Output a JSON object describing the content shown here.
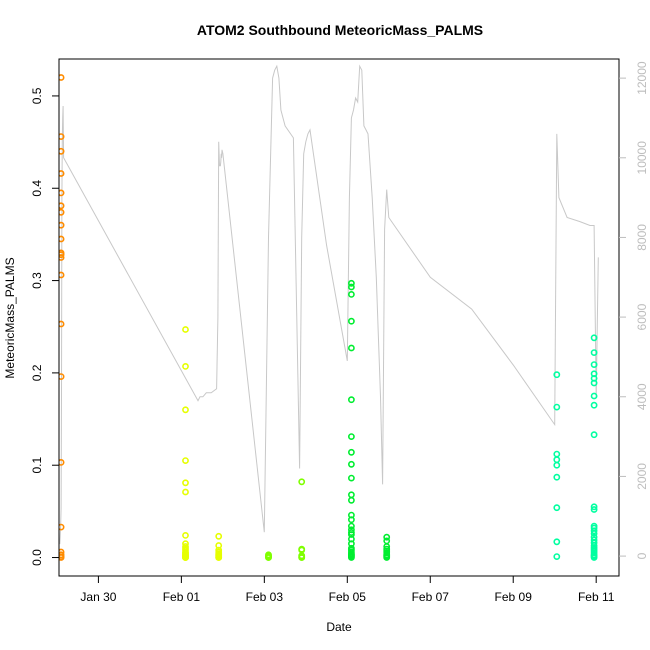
{
  "chart_data": {
    "type": "scatter",
    "title": "ATOM2 Southbound MeteoricMass_PALMS",
    "xlabel": "Date",
    "ylabel": "MeteoricMass_PALMS",
    "x_ticks": [
      "Jan 30",
      "Feb 01",
      "Feb 03",
      "Feb 05",
      "Feb 07",
      "Feb 09",
      "Feb 11"
    ],
    "y_ticks": [
      "0.0",
      "0.1",
      "0.2",
      "0.3",
      "0.4",
      "0.5"
    ],
    "y2_ticks": [
      "0",
      "2000",
      "4000",
      "6000",
      "8000",
      "10000",
      "12000"
    ],
    "xlim": [
      "2017-01-29.05",
      "2017-02-11.55"
    ],
    "ylim": [
      -0.02,
      0.54
    ],
    "y2lim": [
      -500,
      12480
    ],
    "grid": false,
    "legend": "none",
    "secondary_line_color": "#c8c8c8",
    "point_colors": {
      "jan29": "#ff8c00",
      "feb01": "#e6ff00",
      "feb03": "#7fff00",
      "feb05": "#00ee30",
      "feb10": "#00ffa0"
    },
    "series": [
      {
        "group": "jan29",
        "x": [
          "2017-01-29.1",
          "2017-01-29.1",
          "2017-01-29.1",
          "2017-01-29.1",
          "2017-01-29.1",
          "2017-01-29.1",
          "2017-01-29.1",
          "2017-01-29.1",
          "2017-01-29.1",
          "2017-01-29.1",
          "2017-01-29.1",
          "2017-01-29.1",
          "2017-01-29.1",
          "2017-01-29.1",
          "2017-01-29.1",
          "2017-01-29.1",
          "2017-01-29.1",
          "2017-01-29.1",
          "2017-01-29.1",
          "2017-01-29.1",
          "2017-01-29.1"
        ],
        "y": [
          0.52,
          0.456,
          0.44,
          0.416,
          0.395,
          0.381,
          0.374,
          0.36,
          0.345,
          0.33,
          0.328,
          0.325,
          0.306,
          0.253,
          0.196,
          0.103,
          0.033,
          0.006,
          0.003,
          0.001,
          0.0
        ]
      },
      {
        "group": "feb01",
        "x": [
          "2017-02-01.1",
          "2017-02-01.1",
          "2017-02-01.1",
          "2017-02-01.1",
          "2017-02-01.1",
          "2017-02-01.1",
          "2017-02-01.1",
          "2017-02-01.1",
          "2017-02-01.1",
          "2017-02-01.1",
          "2017-02-01.1",
          "2017-02-01.1",
          "2017-02-01.1",
          "2017-02-01.1",
          "2017-02-01.1",
          "2017-02-01.1",
          "2017-02-01.1",
          "2017-02-01.1",
          "2017-02-01.1",
          "2017-02-01.1",
          "2017-02-01.1",
          "2017-02-01.1"
        ],
        "y": [
          0.247,
          0.207,
          0.16,
          0.105,
          0.081,
          0.071,
          0.024,
          0.015,
          0.012,
          0.01,
          0.008,
          0.006,
          0.005,
          0.004,
          0.003,
          0.002,
          0.002,
          0.001,
          0.001,
          0.0,
          0.0,
          0.0
        ]
      },
      {
        "group": "feb01",
        "x": [
          "2017-02-01.9",
          "2017-02-01.9",
          "2017-02-01.9",
          "2017-02-01.9",
          "2017-02-01.9",
          "2017-02-01.9",
          "2017-02-01.9",
          "2017-02-01.9",
          "2017-02-01.9",
          "2017-02-01.9"
        ],
        "y": [
          0.023,
          0.013,
          0.008,
          0.006,
          0.004,
          0.003,
          0.002,
          0.001,
          0.0,
          0.0
        ]
      },
      {
        "group": "feb03",
        "x": [
          "2017-02-03.1",
          "2017-02-03.1",
          "2017-02-03.1",
          "2017-02-03.1",
          "2017-02-03.1",
          "2017-02-03.1"
        ],
        "y": [
          0.003,
          0.002,
          0.001,
          0.001,
          0.0,
          0.0
        ]
      },
      {
        "group": "feb03",
        "x": [
          "2017-02-03.9",
          "2017-02-03.9",
          "2017-02-03.9",
          "2017-02-03.9",
          "2017-02-03.9",
          "2017-02-03.9",
          "2017-02-03.9"
        ],
        "y": [
          0.082,
          0.009,
          0.008,
          0.002,
          0.001,
          0.0,
          0.0
        ]
      },
      {
        "group": "feb05",
        "x": [
          "2017-02-05.1",
          "2017-02-05.1",
          "2017-02-05.1",
          "2017-02-05.1",
          "2017-02-05.1",
          "2017-02-05.1",
          "2017-02-05.1",
          "2017-02-05.1",
          "2017-02-05.1",
          "2017-02-05.1",
          "2017-02-05.1",
          "2017-02-05.1",
          "2017-02-05.1",
          "2017-02-05.1",
          "2017-02-05.1",
          "2017-02-05.1",
          "2017-02-05.1",
          "2017-02-05.1",
          "2017-02-05.1",
          "2017-02-05.1",
          "2017-02-05.1",
          "2017-02-05.1",
          "2017-02-05.1",
          "2017-02-05.1",
          "2017-02-05.1",
          "2017-02-05.1",
          "2017-02-05.1",
          "2017-02-05.1"
        ],
        "y": [
          0.297,
          0.293,
          0.285,
          0.256,
          0.227,
          0.171,
          0.131,
          0.114,
          0.101,
          0.086,
          0.068,
          0.062,
          0.046,
          0.041,
          0.034,
          0.03,
          0.027,
          0.025,
          0.02,
          0.015,
          0.01,
          0.008,
          0.006,
          0.004,
          0.003,
          0.002,
          0.001,
          0.0
        ]
      },
      {
        "group": "feb05",
        "x": [
          "2017-02-05.95",
          "2017-02-05.95",
          "2017-02-05.95",
          "2017-02-05.95",
          "2017-02-05.95",
          "2017-02-05.95",
          "2017-02-05.95",
          "2017-02-05.95",
          "2017-02-05.95",
          "2017-02-05.95"
        ],
        "y": [
          0.022,
          0.018,
          0.012,
          0.009,
          0.007,
          0.005,
          0.003,
          0.002,
          0.001,
          0.0
        ]
      },
      {
        "group": "feb10",
        "x": [
          "2017-02-10.05",
          "2017-02-10.05",
          "2017-02-10.05",
          "2017-02-10.05",
          "2017-02-10.05",
          "2017-02-10.05",
          "2017-02-10.05",
          "2017-02-10.05",
          "2017-02-10.05"
        ],
        "y": [
          0.198,
          0.163,
          0.112,
          0.106,
          0.1,
          0.087,
          0.054,
          0.017,
          0.001
        ]
      },
      {
        "group": "feb10",
        "x": [
          "2017-02-10.95",
          "2017-02-10.95",
          "2017-02-10.95",
          "2017-02-10.95",
          "2017-02-10.95",
          "2017-02-10.95",
          "2017-02-10.95",
          "2017-02-10.95",
          "2017-02-10.95",
          "2017-02-10.95",
          "2017-02-10.95",
          "2017-02-10.95",
          "2017-02-10.95",
          "2017-02-10.95",
          "2017-02-10.95",
          "2017-02-10.95",
          "2017-02-10.95",
          "2017-02-10.95",
          "2017-02-10.95",
          "2017-02-10.95",
          "2017-02-10.95",
          "2017-02-10.95",
          "2017-02-10.95",
          "2017-02-10.95",
          "2017-02-10.95",
          "2017-02-10.95",
          "2017-02-10.95"
        ],
        "y": [
          0.238,
          0.222,
          0.209,
          0.199,
          0.194,
          0.189,
          0.175,
          0.165,
          0.133,
          0.055,
          0.052,
          0.034,
          0.032,
          0.029,
          0.026,
          0.022,
          0.019,
          0.016,
          0.013,
          0.011,
          0.009,
          0.007,
          0.005,
          0.003,
          0.002,
          0.001,
          0.0
        ]
      }
    ],
    "secondary_line": {
      "x": [
        "2017-01-29.07",
        "2017-01-29.08",
        "2017-01-29.09",
        "2017-01-29.1",
        "2017-01-29.11",
        "2017-01-29.12",
        "2017-01-29.13",
        "2017-01-29.14",
        "2017-01-29.15",
        "2017-01-29.16",
        "2017-02-01.4",
        "2017-02-01.45",
        "2017-02-01.52",
        "2017-02-01.6",
        "2017-02-01.72",
        "2017-02-01.85",
        "2017-02-01.88",
        "2017-02-01.9",
        "2017-02-01.92",
        "2017-02-01.93",
        "2017-02-01.94",
        "2017-02-01.95",
        "2017-02-01.96",
        "2017-02-01.97",
        "2017-02-01.98",
        "2017-02-02.0",
        "2017-02-03.0",
        "2017-02-03.1",
        "2017-02-03.2",
        "2017-02-03.25",
        "2017-02-03.3",
        "2017-02-03.35",
        "2017-02-03.4",
        "2017-02-03.5",
        "2017-02-03.7",
        "2017-02-03.85",
        "2017-02-03.9",
        "2017-02-03.95",
        "2017-02-04.0",
        "2017-02-04.05",
        "2017-02-04.1",
        "2017-02-04.5",
        "2017-02-05.0",
        "2017-02-05.05",
        "2017-02-05.1",
        "2017-02-05.15",
        "2017-02-05.2",
        "2017-02-05.25",
        "2017-02-05.3",
        "2017-02-05.35",
        "2017-02-05.4",
        "2017-02-05.45",
        "2017-02-05.5",
        "2017-02-05.6",
        "2017-02-05.7",
        "2017-02-05.8",
        "2017-02-05.85",
        "2017-02-05.9",
        "2017-02-05.95",
        "2017-02-06.0",
        "2017-02-07.0",
        "2017-02-08.0",
        "2017-02-09.0",
        "2017-02-10.0",
        "2017-02-10.05",
        "2017-02-10.1",
        "2017-02-10.3",
        "2017-02-10.6",
        "2017-02-10.85",
        "2017-02-10.9",
        "2017-02-10.95",
        "2017-02-11.0",
        "2017-02-11.05"
      ],
      "y": [
        300,
        500,
        800,
        1200,
        4000,
        9000,
        10500,
        11000,
        11300,
        10000,
        3900,
        4000,
        4000,
        4100,
        4100,
        4200,
        6000,
        10400,
        9800,
        9800,
        9800,
        9900,
        10100,
        10000,
        10200,
        10100,
        600,
        8000,
        12000,
        12200,
        12300,
        12000,
        11200,
        10800,
        10500,
        2200,
        8000,
        10100,
        10400,
        10600,
        10700,
        7800,
        4900,
        9000,
        11000,
        11200,
        11500,
        11400,
        12300,
        12200,
        10800,
        10700,
        10600,
        9000,
        7000,
        4000,
        1800,
        8200,
        9200,
        8500,
        7000,
        6200,
        4800,
        3300,
        10600,
        9000,
        8500,
        8400,
        8300,
        8300,
        8300,
        4000,
        7500
      ]
    }
  }
}
